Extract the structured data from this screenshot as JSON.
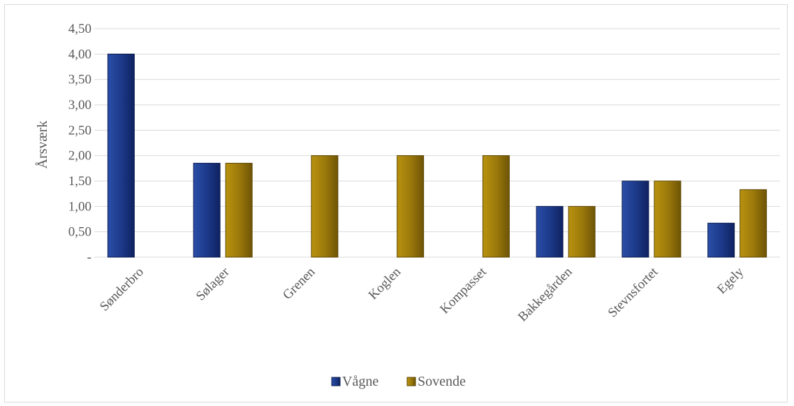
{
  "chart_data": {
    "type": "bar",
    "ylabel": "Årsværk",
    "xlabel": "",
    "ylim": [
      0,
      4.5
    ],
    "ytick_values": [
      0,
      0.5,
      1,
      1.5,
      2,
      2.5,
      3,
      3.5,
      4,
      4.5
    ],
    "ytick_labels": [
      "-",
      "0,50",
      "1,00",
      "1,50",
      "2,00",
      "2,50",
      "3,00",
      "3,50",
      "4,00",
      "4,50"
    ],
    "categories": [
      "Sønderbro",
      "Sølager",
      "Grenen",
      "Koglen",
      "Kompasset",
      "Bakkegården",
      "Stevnsfortet",
      "Egely"
    ],
    "series": [
      {
        "name": "Vågne",
        "color": "#1f3c88",
        "values": [
          4.0,
          1.85,
          0,
          0,
          0,
          1.0,
          1.5,
          0.67
        ]
      },
      {
        "name": "Sovende",
        "color": "#9c7a0b",
        "values": [
          0,
          1.85,
          2.0,
          2.0,
          2.0,
          1.0,
          1.5,
          1.33
        ]
      }
    ],
    "grid": true,
    "legend_position": "bottom"
  }
}
